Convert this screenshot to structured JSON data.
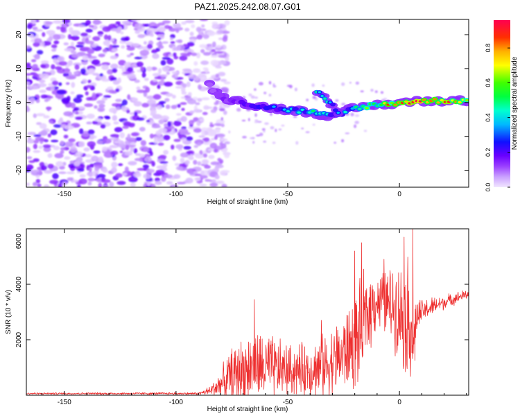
{
  "figure_title": "PAZ1.2025.242.08.07.G01",
  "colorbar": {
    "label": "Normalized spectral amplitude",
    "ticks": [
      "0.0",
      "0.2",
      "0.4",
      "0.6",
      "0.8"
    ],
    "tick_values": [
      0.0,
      0.2,
      0.4,
      0.6,
      0.8
    ],
    "range": [
      0,
      0.96
    ],
    "stops": [
      {
        "v": 0.0,
        "c": "#f2e6ff"
      },
      {
        "v": 0.06,
        "c": "#c9a0ff"
      },
      {
        "v": 0.12,
        "c": "#9b40ff"
      },
      {
        "v": 0.18,
        "c": "#6a00ff"
      },
      {
        "v": 0.26,
        "c": "#1010ff"
      },
      {
        "v": 0.36,
        "c": "#00b8ff"
      },
      {
        "v": 0.44,
        "c": "#00ffd0"
      },
      {
        "v": 0.52,
        "c": "#00ff40"
      },
      {
        "v": 0.6,
        "c": "#40ff00"
      },
      {
        "v": 0.7,
        "c": "#ffff00"
      },
      {
        "v": 0.78,
        "c": "#ffb000"
      },
      {
        "v": 0.86,
        "c": "#ff3000"
      },
      {
        "v": 0.96,
        "c": "#ff0050"
      }
    ]
  },
  "chart_data": [
    {
      "type": "heatmap",
      "title": "PAZ1.2025.242.08.07.G01",
      "xlabel": "Height of straight line (km)",
      "ylabel": "Frequency (Hz)",
      "xlim": [
        -167,
        31
      ],
      "ylim": [
        -25,
        24.5
      ],
      "xticks": [
        -150,
        -100,
        -50,
        0
      ],
      "xtick_labels": [
        "-150",
        "-100",
        "-50",
        "0"
      ],
      "yticks": [
        -20,
        -10,
        0,
        10,
        20
      ],
      "ytick_labels": [
        "-20",
        "-10",
        "0",
        "10",
        "20"
      ],
      "noise_region_x": [
        -167,
        -85
      ],
      "signal_track": {
        "x": [
          -85,
          -80,
          -72,
          -65,
          -58,
          -52,
          -45,
          -38,
          -32,
          -27,
          -22,
          -18,
          -12,
          -5,
          0,
          8,
          15,
          22,
          31
        ],
        "freq": [
          5,
          1.5,
          0.5,
          -1,
          -1.5,
          -2,
          -2.5,
          -3,
          -4,
          -4,
          -2,
          -1.5,
          -0.8,
          -0.5,
          0,
          0.3,
          0.5,
          0.6,
          0.4
        ],
        "amplitude": [
          0.1,
          0.2,
          0.22,
          0.3,
          0.3,
          0.35,
          0.4,
          0.45,
          0.42,
          0.38,
          0.4,
          0.5,
          0.6,
          0.75,
          0.8,
          0.85,
          0.85,
          0.8,
          0.75
        ]
      },
      "secondary_branch": {
        "x": [
          -37,
          -34,
          -30,
          -27
        ],
        "freq": [
          3.5,
          1.5,
          -1,
          -3
        ],
        "amplitude": [
          0.5,
          0.45,
          0.4,
          0.35
        ]
      }
    },
    {
      "type": "line",
      "xlabel": "Height of straight line (km)",
      "ylabel": "SNR (10 * v/v)",
      "xlim": [
        -167,
        31
      ],
      "ylim": [
        0,
        6000
      ],
      "xticks": [
        -150,
        -100,
        -50,
        0
      ],
      "xtick_labels": [
        "-150",
        "-100",
        "-50",
        "0"
      ],
      "yticks": [
        2000,
        4000,
        6000
      ],
      "ytick_labels": [
        "2000",
        "4000",
        "6000"
      ],
      "series": [
        {
          "name": "SNR",
          "color": "#ee3030",
          "envelope_x": [
            -167,
            -90,
            -85,
            -80,
            -75,
            -70,
            -65,
            -60,
            -55,
            -50,
            -45,
            -40,
            -35,
            -30,
            -25,
            -20,
            -17,
            -15,
            -12,
            -10,
            -5,
            -2,
            0,
            3,
            5,
            6,
            7,
            8,
            10,
            15,
            20,
            25,
            31
          ],
          "envelope_base": [
            60,
            60,
            150,
            400,
            700,
            900,
            1000,
            1000,
            950,
            900,
            900,
            950,
            1000,
            1200,
            1500,
            1900,
            2300,
            2800,
            3300,
            3400,
            3300,
            3200,
            3000,
            2800,
            2900,
            1300,
            2700,
            2800,
            3000,
            3200,
            3350,
            3500,
            3650
          ],
          "envelope_spread": [
            40,
            50,
            200,
            600,
            1200,
            1400,
            1500,
            1500,
            1300,
            1100,
            1100,
            1200,
            1300,
            1500,
            1700,
            2000,
            2200,
            2000,
            1500,
            1200,
            1500,
            1800,
            2000,
            2500,
            2800,
            300,
            1000,
            800,
            500,
            400,
            300,
            250,
            200
          ],
          "peaks": [
            {
              "x": -65,
              "y": 3450
            },
            {
              "x": -35,
              "y": 2700
            },
            {
              "x": -20,
              "y": 5200
            },
            {
              "x": -17,
              "y": 5500
            },
            {
              "x": -7,
              "y": 4900
            },
            {
              "x": 2,
              "y": 5700
            },
            {
              "x": 6,
              "y": 6000
            },
            {
              "x": 7,
              "y": 1250
            }
          ]
        }
      ]
    }
  ]
}
